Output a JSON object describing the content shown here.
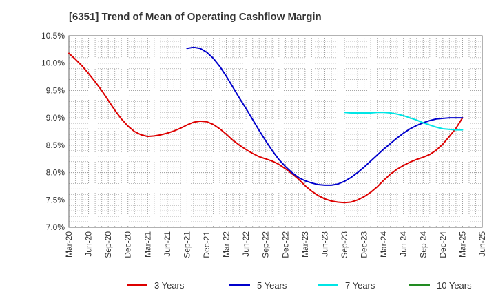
{
  "chart_data": {
    "type": "line",
    "title": "[6351]  Trend of Mean of Operating Cashflow Margin",
    "xlabel": "",
    "ylabel": "",
    "x_ticks": [
      "Mar-20",
      "Jun-20",
      "Sep-20",
      "Dec-20",
      "Mar-21",
      "Jun-21",
      "Sep-21",
      "Dec-21",
      "Mar-22",
      "Jun-22",
      "Sep-22",
      "Dec-22",
      "Mar-23",
      "Jun-23",
      "Sep-23",
      "Dec-23",
      "Mar-24",
      "Jun-24",
      "Sep-24",
      "Dec-24",
      "Mar-25",
      "Jun-25"
    ],
    "y_ticks": [
      "7.0%",
      "7.5%",
      "8.0%",
      "8.5%",
      "9.0%",
      "9.5%",
      "10.0%",
      "10.5%"
    ],
    "ylim": [
      7.0,
      10.5
    ],
    "grid": true,
    "legend_position": "bottom",
    "series": [
      {
        "name": "3 Years",
        "color": "#dd0000",
        "points": [
          [
            "Mar-20",
            10.18
          ],
          [
            "Apr-20",
            10.07
          ],
          [
            "May-20",
            9.95
          ],
          [
            "Jun-20",
            9.81
          ],
          [
            "Jul-20",
            9.66
          ],
          [
            "Aug-20",
            9.5
          ],
          [
            "Sep-20",
            9.32
          ],
          [
            "Oct-20",
            9.14
          ],
          [
            "Nov-20",
            8.98
          ],
          [
            "Dec-20",
            8.85
          ],
          [
            "Jan-21",
            8.75
          ],
          [
            "Feb-21",
            8.69
          ],
          [
            "Mar-21",
            8.66
          ],
          [
            "Apr-21",
            8.67
          ],
          [
            "May-21",
            8.69
          ],
          [
            "Jun-21",
            8.72
          ],
          [
            "Jul-21",
            8.76
          ],
          [
            "Aug-21",
            8.81
          ],
          [
            "Sep-21",
            8.87
          ],
          [
            "Oct-21",
            8.92
          ],
          [
            "Nov-21",
            8.94
          ],
          [
            "Dec-21",
            8.93
          ],
          [
            "Jan-22",
            8.88
          ],
          [
            "Feb-22",
            8.8
          ],
          [
            "Mar-22",
            8.7
          ],
          [
            "Apr-22",
            8.59
          ],
          [
            "May-22",
            8.5
          ],
          [
            "Jun-22",
            8.42
          ],
          [
            "Jul-22",
            8.35
          ],
          [
            "Aug-22",
            8.29
          ],
          [
            "Sep-22",
            8.25
          ],
          [
            "Oct-22",
            8.21
          ],
          [
            "Nov-22",
            8.15
          ],
          [
            "Dec-22",
            8.07
          ],
          [
            "Jan-23",
            7.98
          ],
          [
            "Feb-23",
            7.88
          ],
          [
            "Mar-23",
            7.76
          ],
          [
            "Apr-23",
            7.66
          ],
          [
            "May-23",
            7.58
          ],
          [
            "Jun-23",
            7.52
          ],
          [
            "Jul-23",
            7.48
          ],
          [
            "Aug-23",
            7.46
          ],
          [
            "Sep-23",
            7.45
          ],
          [
            "Oct-23",
            7.46
          ],
          [
            "Nov-23",
            7.5
          ],
          [
            "Dec-23",
            7.56
          ],
          [
            "Jan-24",
            7.64
          ],
          [
            "Feb-24",
            7.74
          ],
          [
            "Mar-24",
            7.86
          ],
          [
            "Apr-24",
            7.97
          ],
          [
            "May-24",
            8.06
          ],
          [
            "Jun-24",
            8.13
          ],
          [
            "Jul-24",
            8.19
          ],
          [
            "Aug-24",
            8.24
          ],
          [
            "Sep-24",
            8.28
          ],
          [
            "Oct-24",
            8.33
          ],
          [
            "Nov-24",
            8.41
          ],
          [
            "Dec-24",
            8.52
          ],
          [
            "Jan-25",
            8.66
          ],
          [
            "Feb-25",
            8.81
          ],
          [
            "Mar-25",
            9.0
          ]
        ]
      },
      {
        "name": "5 Years",
        "color": "#0000cc",
        "points": [
          [
            "Sep-21",
            10.27
          ],
          [
            "Oct-21",
            10.29
          ],
          [
            "Nov-21",
            10.27
          ],
          [
            "Dec-21",
            10.2
          ],
          [
            "Jan-22",
            10.09
          ],
          [
            "Feb-22",
            9.94
          ],
          [
            "Mar-22",
            9.76
          ],
          [
            "Apr-22",
            9.56
          ],
          [
            "May-22",
            9.36
          ],
          [
            "Jun-22",
            9.17
          ],
          [
            "Jul-22",
            8.97
          ],
          [
            "Aug-22",
            8.77
          ],
          [
            "Sep-22",
            8.58
          ],
          [
            "Oct-22",
            8.4
          ],
          [
            "Nov-22",
            8.24
          ],
          [
            "Dec-22",
            8.11
          ],
          [
            "Jan-23",
            8.0
          ],
          [
            "Feb-23",
            7.91
          ],
          [
            "Mar-23",
            7.85
          ],
          [
            "Apr-23",
            7.81
          ],
          [
            "May-23",
            7.78
          ],
          [
            "Jun-23",
            7.77
          ],
          [
            "Jul-23",
            7.77
          ],
          [
            "Aug-23",
            7.79
          ],
          [
            "Sep-23",
            7.84
          ],
          [
            "Oct-23",
            7.91
          ],
          [
            "Nov-23",
            8.0
          ],
          [
            "Dec-23",
            8.1
          ],
          [
            "Jan-24",
            8.21
          ],
          [
            "Feb-24",
            8.32
          ],
          [
            "Mar-24",
            8.43
          ],
          [
            "Apr-24",
            8.53
          ],
          [
            "May-24",
            8.63
          ],
          [
            "Jun-24",
            8.72
          ],
          [
            "Jul-24",
            8.8
          ],
          [
            "Aug-24",
            8.86
          ],
          [
            "Sep-24",
            8.91
          ],
          [
            "Oct-24",
            8.95
          ],
          [
            "Nov-24",
            8.98
          ],
          [
            "Dec-24",
            8.99
          ],
          [
            "Jan-25",
            9.0
          ],
          [
            "Feb-25",
            9.0
          ],
          [
            "Mar-25",
            9.0
          ]
        ]
      },
      {
        "name": "7 Years",
        "color": "#00e5e5",
        "points": [
          [
            "Sep-23",
            9.1
          ],
          [
            "Oct-23",
            9.09
          ],
          [
            "Nov-23",
            9.09
          ],
          [
            "Dec-23",
            9.09
          ],
          [
            "Jan-24",
            9.09
          ],
          [
            "Feb-24",
            9.1
          ],
          [
            "Mar-24",
            9.1
          ],
          [
            "Apr-24",
            9.09
          ],
          [
            "May-24",
            9.07
          ],
          [
            "Jun-24",
            9.04
          ],
          [
            "Jul-24",
            9.0
          ],
          [
            "Aug-24",
            8.96
          ],
          [
            "Sep-24",
            8.91
          ],
          [
            "Oct-24",
            8.87
          ],
          [
            "Nov-24",
            8.83
          ],
          [
            "Dec-24",
            8.8
          ],
          [
            "Jan-25",
            8.79
          ],
          [
            "Feb-25",
            8.78
          ],
          [
            "Mar-25",
            8.78
          ]
        ]
      },
      {
        "name": "10 Years",
        "color": "#228b22",
        "points": []
      }
    ]
  }
}
